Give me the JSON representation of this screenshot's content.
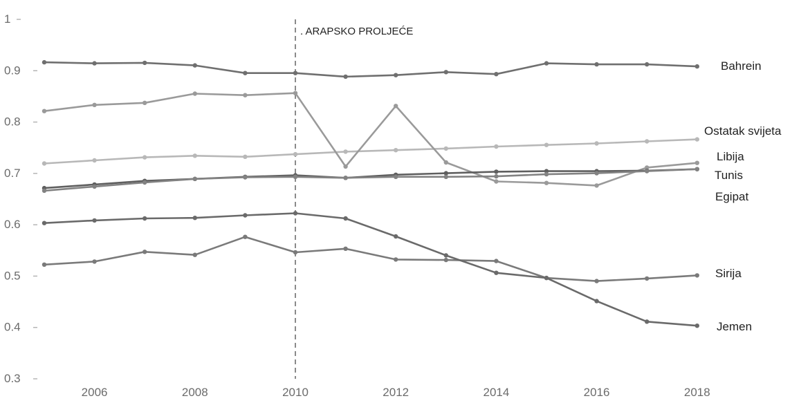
{
  "chart_data": {
    "type": "line",
    "title": "",
    "xlabel": "",
    "ylabel": "",
    "x": [
      2005,
      2006,
      2007,
      2008,
      2009,
      2010,
      2011,
      2012,
      2013,
      2014,
      2015,
      2016,
      2017,
      2018
    ],
    "xlim": [
      2005,
      2019
    ],
    "ylim": [
      0.3,
      1.0
    ],
    "x_ticks": [
      "2006",
      "2008",
      "2010",
      "2012",
      "2014",
      "2016",
      "2018"
    ],
    "y_ticks": [
      "0.3",
      "0.4",
      "0.5",
      "0.6",
      "0.7",
      "0.8",
      "0.9",
      "1"
    ],
    "grid": false,
    "annotation": {
      "x": 2010,
      "label": ". ARAPSKO PROLJEĆE",
      "style": "dashed-vertical"
    },
    "series": [
      {
        "name": "Bahrein",
        "color": "#6f6f6f",
        "values": [
          0.915,
          0.913,
          0.914,
          0.909,
          0.894,
          0.894,
          0.887,
          0.89,
          0.896,
          0.892,
          0.913,
          0.911,
          0.911,
          0.907
        ]
      },
      {
        "name": "Ostatak svijeta",
        "color": "#b8b8b8",
        "values": [
          0.718,
          0.724,
          0.73,
          0.733,
          0.731,
          0.736,
          0.741,
          0.744,
          0.747,
          0.751,
          0.754,
          0.757,
          0.761,
          0.765
        ]
      },
      {
        "name": "Libija",
        "color": "#9a9a9a",
        "values": [
          0.82,
          0.832,
          0.836,
          0.854,
          0.851,
          0.855,
          0.712,
          0.83,
          0.72,
          0.683,
          0.68,
          0.675,
          0.71,
          0.719
        ]
      },
      {
        "name": "Tunis",
        "color": "#5f5f5f",
        "values": [
          0.67,
          0.677,
          0.684,
          0.688,
          0.692,
          0.695,
          0.69,
          0.696,
          0.699,
          0.702,
          0.703,
          0.703,
          0.704,
          0.707
        ]
      },
      {
        "name": "Egipat",
        "color": "#828282",
        "values": [
          0.665,
          0.673,
          0.681,
          0.688,
          0.691,
          0.692,
          0.69,
          0.692,
          0.692,
          0.693,
          0.697,
          0.699,
          0.703,
          0.707
        ]
      },
      {
        "name": "Sirija",
        "color": "#7a7a7a",
        "values": [
          0.521,
          0.527,
          0.546,
          0.54,
          0.575,
          0.545,
          0.552,
          0.531,
          0.53,
          0.528,
          0.495,
          0.489,
          0.494,
          0.5
        ]
      },
      {
        "name": "Jemen",
        "color": "#6a6a6a",
        "values": [
          0.602,
          0.607,
          0.611,
          0.612,
          0.617,
          0.621,
          0.611,
          0.576,
          0.539,
          0.505,
          0.495,
          0.45,
          0.41,
          0.402
        ]
      }
    ]
  },
  "series_labels": [
    {
      "name": "Bahrein",
      "text": "Bahrein"
    },
    {
      "name": "Ostatak svijeta",
      "text": "Ostatak svijeta"
    },
    {
      "name": "Libija",
      "text": "Libija"
    },
    {
      "name": "Tunis",
      "text": "Tunis"
    },
    {
      "name": "Egipat",
      "text": "Egipat"
    },
    {
      "name": "Sirija",
      "text": "Sirija"
    },
    {
      "name": "Jemen",
      "text": "Jemen"
    }
  ]
}
